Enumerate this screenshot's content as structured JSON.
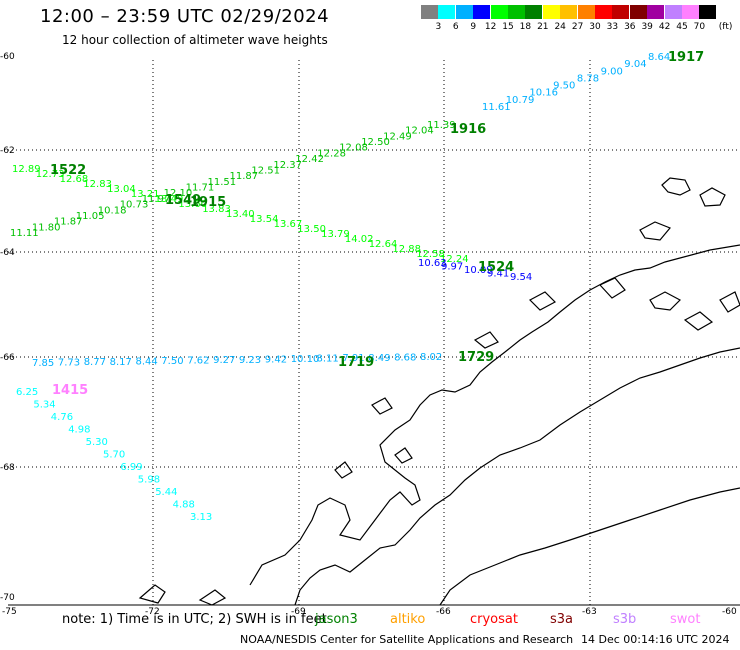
{
  "title": "12:00 – 23:59 UTC 02/29/2024",
  "subtitle": "12 hour collection of altimeter wave heights",
  "legend": {
    "labels": [
      "3",
      "6",
      "9",
      "12",
      "15",
      "18",
      "21",
      "24",
      "27",
      "30",
      "33",
      "36",
      "39",
      "42",
      "45",
      "70"
    ],
    "unit": "(ft)",
    "colors": [
      "#808080",
      "#00ffff",
      "#00b0ff",
      "#0000ff",
      "#00ff00",
      "#00c000",
      "#008000",
      "#ffff00",
      "#ffc000",
      "#ff8000",
      "#ff0000",
      "#c00000",
      "#800000",
      "#a000a0",
      "#c080ff",
      "#ff80ff",
      "#000000"
    ]
  },
  "axes": {
    "lat_labels": [
      "-60",
      "-62",
      "-64",
      "-66",
      "-68",
      "-70"
    ],
    "lon_labels": [
      "-75",
      "-72",
      "-69",
      "-66",
      "-63",
      "-60"
    ]
  },
  "tracks": [
    {
      "name": "jason3-track-1917",
      "color": "#00b0ff",
      "time": "1917",
      "time_color": "#008000",
      "values": [
        "8.64",
        "9.04",
        "9.00",
        "8.78",
        "9.50",
        "10.16",
        "10.79",
        "11.61"
      ]
    },
    {
      "name": "jason3-track-1916",
      "color": "#00c000",
      "time": "1916",
      "time_color": "#008000",
      "values": [
        "11.39",
        "12.04",
        "12.49",
        "12.50",
        "12.08",
        "12.28",
        "12.42",
        "12.37",
        "12.51",
        "11.87",
        "11.51",
        "11.71",
        "12.10",
        "11.97",
        "10.73",
        "10.18",
        "11.05",
        "11.87",
        "11.80",
        "11.11"
      ]
    },
    {
      "name": "jason3-track-1915",
      "color": "#00ff00",
      "time": "1915",
      "time_color": "#008000",
      "values": [
        "12.89",
        "12.73",
        "12.68",
        "12.83",
        "13.04",
        "13.21",
        "13.49",
        "13.60",
        "13.83",
        "13.40",
        "13.54",
        "13.67",
        "13.50",
        "13.79",
        "14.02",
        "12.64",
        "12.88",
        "12.58",
        "12.24"
      ]
    },
    {
      "name": "track-1522",
      "color": "#00c000",
      "time": "1522",
      "time_color": "#008000",
      "values": []
    },
    {
      "name": "track-1524",
      "color": "#0000ff",
      "time": "1524",
      "time_color": "#008000",
      "values": [
        "10.63",
        "9.97",
        "10.09",
        "9.41",
        "9.54"
      ]
    },
    {
      "name": "track-1549",
      "color": "#008000",
      "time": "1549",
      "time_color": "#008000",
      "values": []
    },
    {
      "name": "track-1729",
      "color": "#00b0ff",
      "time": "1729",
      "time_color": "#008000",
      "values": [
        "7.85",
        "7.73",
        "8.77",
        "8.17",
        "8.44",
        "7.50",
        "7.62",
        "9.27",
        "9.23",
        "9.42",
        "10.10",
        "8.11",
        "7.91",
        "8.49",
        "8.68",
        "8.02"
      ]
    },
    {
      "name": "track-1719",
      "color": "#008000",
      "time": "1719",
      "time_color": "#008000",
      "values": []
    },
    {
      "name": "track-1415",
      "color": "#00ffff",
      "time": "1415",
      "time_color": "#ff80ff",
      "values": [
        "6.25",
        "5.34",
        "4.76",
        "4.98",
        "5.30",
        "5.70",
        "6.99",
        "5.98",
        "5.44",
        "4.88",
        "3.13"
      ]
    }
  ],
  "note": "note:  1) Time is in UTC; 2) SWH is in feet",
  "satellites": [
    {
      "name": "jason3",
      "color": "#008000"
    },
    {
      "name": "altiko",
      "color": "#ffa000"
    },
    {
      "name": "cryosat",
      "color": "#ff0000"
    },
    {
      "name": "s3a",
      "color": "#800000"
    },
    {
      "name": "s3b",
      "color": "#c080ff"
    },
    {
      "name": "swot",
      "color": "#ff80ff"
    }
  ],
  "footer": "NOAA/NESDIS Center for Satellite Applications and Research",
  "footer_date": "14 Dec 00:14:16 UTC 2024"
}
